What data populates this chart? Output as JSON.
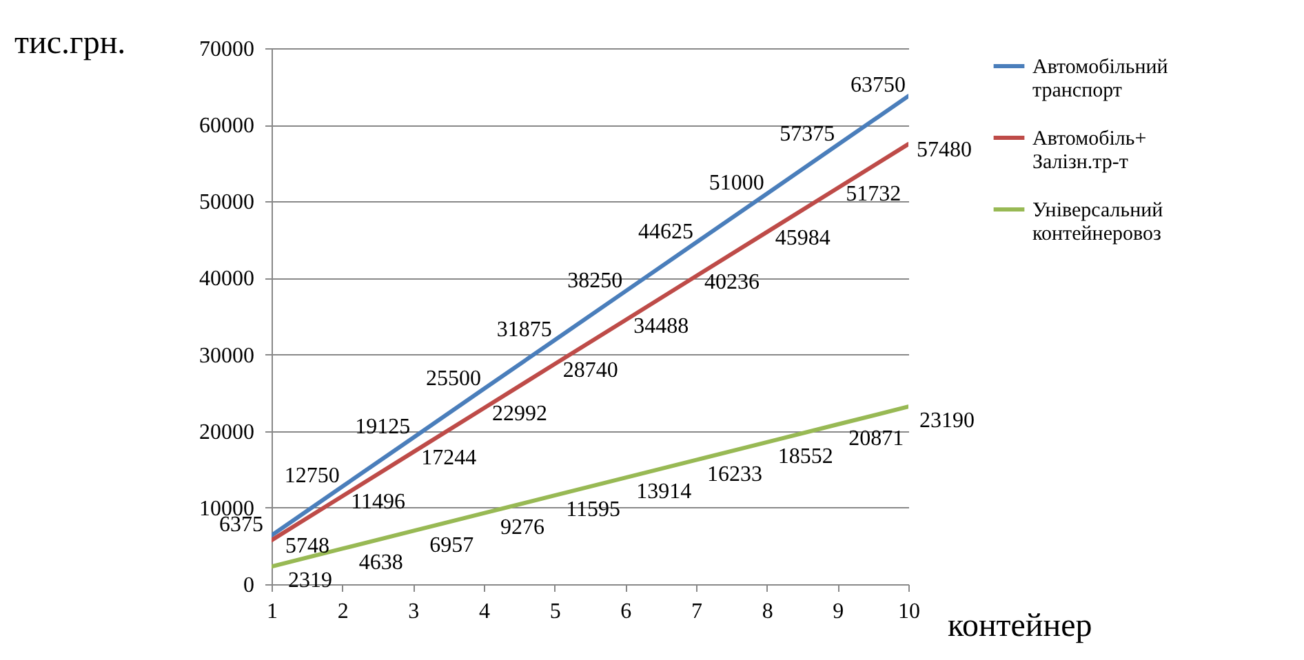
{
  "chart_data": {
    "type": "line",
    "ylabel": "тис.грн.",
    "xlabel": "контейнер",
    "x": [
      1,
      2,
      3,
      4,
      5,
      6,
      7,
      8,
      9,
      10
    ],
    "xlim": [
      1,
      10
    ],
    "xticks": [
      1,
      2,
      3,
      4,
      5,
      6,
      7,
      8,
      9,
      10
    ],
    "ylim": [
      0,
      70000
    ],
    "yticks": [
      0,
      10000,
      20000,
      30000,
      40000,
      50000,
      60000,
      70000
    ],
    "grid": "y",
    "legend": "right",
    "data_labels": true,
    "series": [
      {
        "name": "Автомобільний транспорт",
        "color": "#4a7ebb",
        "values": [
          6375,
          12750,
          19125,
          25500,
          31875,
          38250,
          44625,
          51000,
          57375,
          63750
        ]
      },
      {
        "name": "Автомобіль+ Залізн.тр-т",
        "color": "#be4b48",
        "values": [
          5748,
          11496,
          17244,
          22992,
          28740,
          34488,
          40236,
          45984,
          51732,
          57480
        ]
      },
      {
        "name": "Універсальний контейнеровоз",
        "color": "#98b954",
        "values": [
          2319,
          4638,
          6957,
          9276,
          11595,
          13914,
          16233,
          18552,
          20871,
          23190
        ]
      }
    ]
  }
}
